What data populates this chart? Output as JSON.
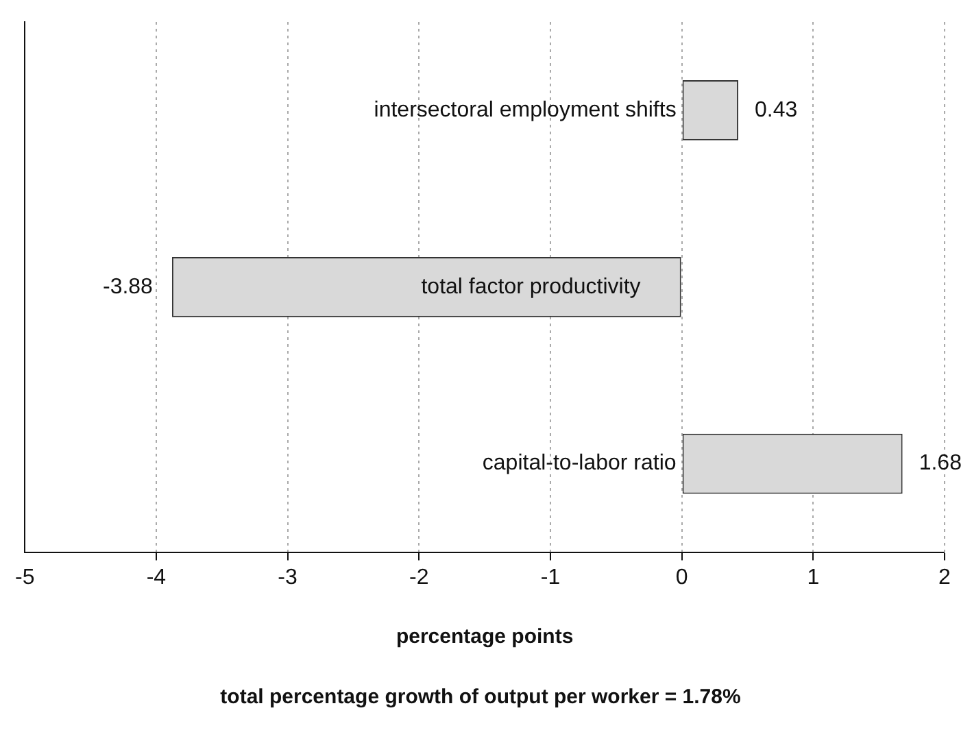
{
  "chart_data": {
    "type": "bar",
    "orientation": "horizontal",
    "categories": [
      "intersectoral employment shifts",
      "total factor productivity",
      "capital-to-labor ratio"
    ],
    "values": [
      0.43,
      -3.88,
      1.68
    ],
    "color": "#d9d9d9",
    "xlim": [
      -5,
      2
    ],
    "xticks": [
      -5,
      -4,
      -3,
      -2,
      -1,
      0,
      1,
      2
    ],
    "grid": "x",
    "data_labels": true,
    "legend": false,
    "xlabel": "percentage points",
    "annotations": [
      "total percentage growth of output per worker = 1.78%"
    ]
  }
}
